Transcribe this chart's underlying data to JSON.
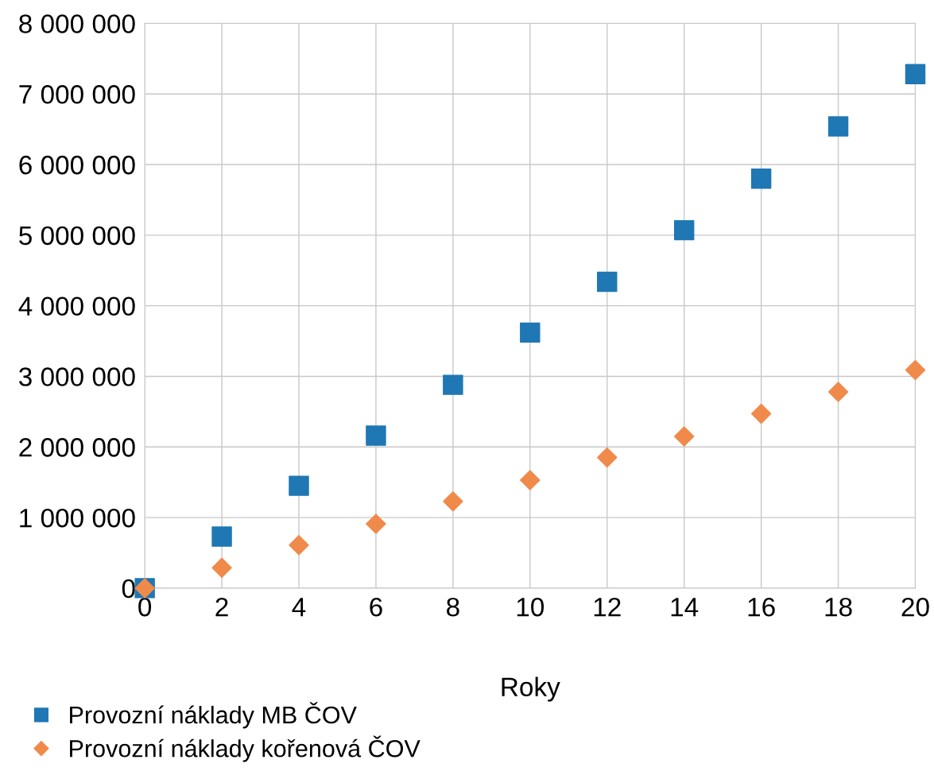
{
  "chart_data": {
    "type": "scatter",
    "xlabel": "Roky",
    "x": [
      0,
      2,
      4,
      6,
      8,
      10,
      12,
      14,
      16,
      18,
      20
    ],
    "series": [
      {
        "name": "Provozní náklady MB ČOV",
        "color": "#1f77b4",
        "marker": "square",
        "values": [
          0,
          730000,
          1450000,
          2160000,
          2880000,
          3620000,
          4340000,
          5070000,
          5800000,
          6540000,
          7280000
        ]
      },
      {
        "name": "Provozní náklady kořenová ČOV",
        "color": "#f08a4b",
        "marker": "diamond",
        "values": [
          0,
          290000,
          610000,
          910000,
          1230000,
          1530000,
          1850000,
          2150000,
          2470000,
          2780000,
          3090000
        ]
      }
    ],
    "xlim": [
      0,
      20
    ],
    "xticks": [
      0,
      2,
      4,
      6,
      8,
      10,
      12,
      14,
      16,
      18,
      20
    ],
    "ylim": [
      0,
      8000000
    ],
    "yticks": [
      {
        "value": 0,
        "label": "0"
      },
      {
        "value": 1000000,
        "label": "1 000 000"
      },
      {
        "value": 2000000,
        "label": "2 000 000"
      },
      {
        "value": 3000000,
        "label": "3 000 000"
      },
      {
        "value": 4000000,
        "label": "4 000 000"
      },
      {
        "value": 5000000,
        "label": "5 000 000"
      },
      {
        "value": 6000000,
        "label": "6 000 000"
      },
      {
        "value": 7000000,
        "label": "7 000 000"
      },
      {
        "value": 8000000,
        "label": "8 000 000"
      }
    ],
    "grid": true,
    "legend": "bottom left"
  }
}
